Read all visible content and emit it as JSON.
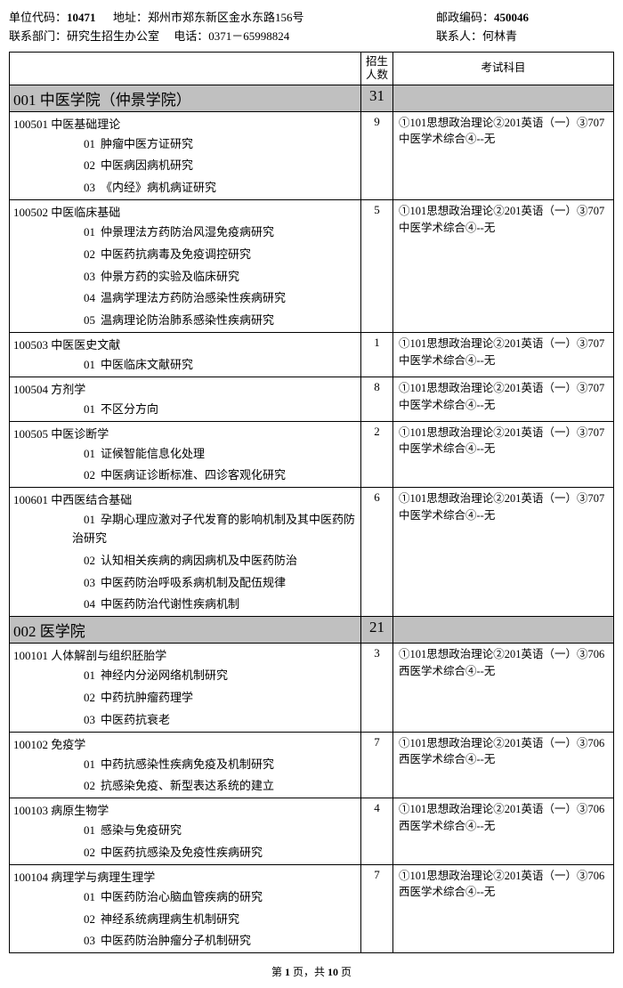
{
  "header": {
    "unit_code_label": "单位代码：",
    "unit_code": "10471",
    "address_label": "地址：",
    "address": "郑州市郑东新区金水东路156号",
    "postal_label": "邮政编码：",
    "postal": "450046",
    "dept_label": "联系部门：",
    "dept": "研究生招生办公室",
    "phone_label": "电话：",
    "phone": "0371－65998824",
    "contact_label": "联系人：",
    "contact": "何林青"
  },
  "columns": {
    "c1": "",
    "c2": "招生\n人数",
    "c3": "考试科目"
  },
  "exam_707": "①101思想政治理论②201英语（一）③707中医学术综合④--无",
  "exam_706": "①101思想政治理论②201英语（一）③706西医学术综合④--无",
  "depts": [
    {
      "code": "001",
      "name": "中医学院（仲景学院）",
      "total": "31",
      "majors": [
        {
          "code": "100501",
          "name": "中医基础理论",
          "num": "9",
          "exam": "707",
          "dirs": [
            {
              "n": "01",
              "t": "肿瘤中医方证研究"
            },
            {
              "n": "02",
              "t": "中医病因病机研究"
            },
            {
              "n": "03",
              "t": "《内经》病机病证研究"
            }
          ]
        },
        {
          "code": "100502",
          "name": "中医临床基础",
          "num": "5",
          "exam": "707",
          "dirs": [
            {
              "n": "01",
              "t": "仲景理法方药防治风湿免疫病研究"
            },
            {
              "n": "02",
              "t": "中医药抗病毒及免疫调控研究"
            },
            {
              "n": "03",
              "t": "仲景方药的实验及临床研究"
            },
            {
              "n": "04",
              "t": "温病学理法方药防治感染性疾病研究"
            },
            {
              "n": "05",
              "t": "温病理论防治肺系感染性疾病研究"
            }
          ]
        },
        {
          "code": "100503",
          "name": "中医医史文献",
          "num": "1",
          "exam": "707",
          "dirs": [
            {
              "n": "01",
              "t": "中医临床文献研究"
            }
          ]
        },
        {
          "code": "100504",
          "name": "方剂学",
          "num": "8",
          "exam": "707",
          "dirs": [
            {
              "n": "01",
              "t": "不区分方向"
            }
          ]
        },
        {
          "code": "100505",
          "name": "中医诊断学",
          "num": "2",
          "exam": "707",
          "dirs": [
            {
              "n": "01",
              "t": "证候智能信息化处理"
            },
            {
              "n": "02",
              "t": "中医病证诊断标准、四诊客观化研究"
            }
          ]
        },
        {
          "code": "100601",
          "name": "中西医结合基础",
          "num": "6",
          "exam": "707",
          "dirs": [
            {
              "n": "01",
              "t": "孕期心理应激对子代发育的影响机制及其中医药防治研究"
            },
            {
              "n": "02",
              "t": "认知相关疾病的病因病机及中医药防治"
            },
            {
              "n": "03",
              "t": "中医药防治呼吸系病机制及配伍规律"
            },
            {
              "n": "04",
              "t": "中医药防治代谢性疾病机制"
            }
          ]
        }
      ]
    },
    {
      "code": "002",
      "name": "医学院",
      "total": "21",
      "majors": [
        {
          "code": "100101",
          "name": "人体解剖与组织胚胎学",
          "num": "3",
          "exam": "706",
          "dirs": [
            {
              "n": "01",
              "t": "神经内分泌网络机制研究"
            },
            {
              "n": "02",
              "t": "中药抗肿瘤药理学"
            },
            {
              "n": "03",
              "t": "中医药抗衰老"
            }
          ]
        },
        {
          "code": "100102",
          "name": "免疫学",
          "num": "7",
          "exam": "706",
          "dirs": [
            {
              "n": "01",
              "t": "中药抗感染性疾病免疫及机制研究"
            },
            {
              "n": "02",
              "t": "抗感染免疫、新型表达系统的建立"
            }
          ]
        },
        {
          "code": "100103",
          "name": "病原生物学",
          "num": "4",
          "exam": "706",
          "dirs": [
            {
              "n": "01",
              "t": "感染与免疫研究"
            },
            {
              "n": "02",
              "t": "中医药抗感染及免疫性疾病研究"
            }
          ]
        },
        {
          "code": "100104",
          "name": "病理学与病理生理学",
          "num": "7",
          "exam": "706",
          "dirs": [
            {
              "n": "01",
              "t": "中医药防治心脑血管疾病的研究"
            },
            {
              "n": "02",
              "t": "神经系统病理病生机制研究"
            },
            {
              "n": "03",
              "t": "中医药防治肿瘤分子机制研究"
            }
          ]
        }
      ]
    }
  ],
  "footer": {
    "page_label_prefix": "第 ",
    "page_current": "1",
    "page_label_mid": " 页，共 ",
    "page_total": "10",
    "page_label_suffix": " 页"
  }
}
